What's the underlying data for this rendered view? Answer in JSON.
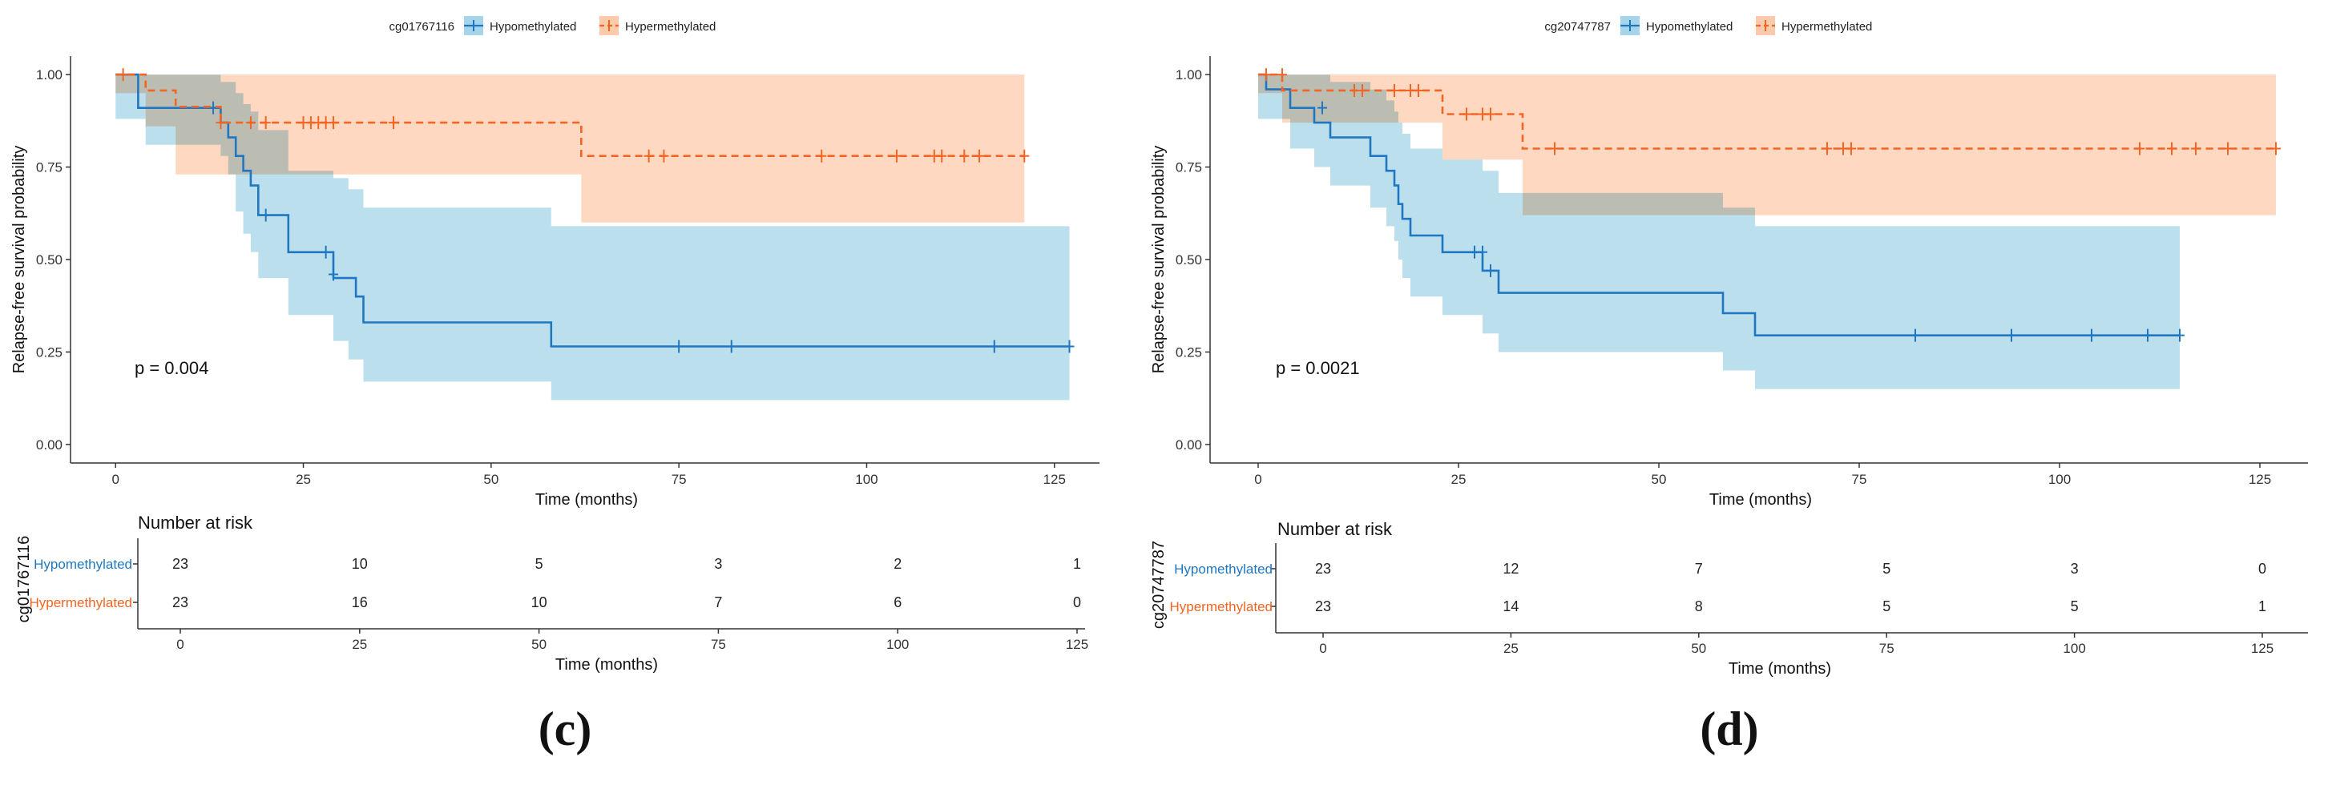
{
  "colors": {
    "hypo": "#1f77c1",
    "hypo_fill": "#a6d4e8",
    "hyper": "#f26522",
    "hyper_fill": "#fdcbab",
    "axis": "#333333"
  },
  "chart_data": [
    {
      "type": "line",
      "subtype": "kaplan-meier",
      "panel_label": "(c)",
      "legend": {
        "title": "cg01767116",
        "entries": [
          "Hypomethylated",
          "Hypermethylated"
        ],
        "position": "top"
      },
      "ylabel": "Relapse-free survival probability",
      "xlabel": "Time (months)",
      "xlim": [
        -6,
        131
      ],
      "ylim": [
        -0.05,
        1.05
      ],
      "xticks": [
        0,
        25,
        50,
        75,
        100,
        125
      ],
      "yticks": [
        "0.00",
        "0.25",
        "0.50",
        "0.75",
        "1.00"
      ],
      "pvalue": "p = 0.004",
      "series": [
        {
          "name": "Hypomethylated",
          "style": "solid",
          "steps": [
            [
              0,
              1.0
            ],
            [
              3,
              0.91
            ],
            [
              14,
              0.87
            ],
            [
              15,
              0.83
            ],
            [
              16,
              0.78
            ],
            [
              17,
              0.74
            ],
            [
              18,
              0.7
            ],
            [
              19,
              0.62
            ],
            [
              23,
              0.52
            ],
            [
              29,
              0.45
            ],
            [
              32,
              0.4
            ],
            [
              33,
              0.33
            ],
            [
              58,
              0.265
            ],
            [
              127,
              0.265
            ]
          ],
          "lower": [
            [
              0,
              0.88
            ],
            [
              4,
              0.81
            ],
            [
              14,
              0.78
            ],
            [
              15,
              0.73
            ],
            [
              16,
              0.63
            ],
            [
              17,
              0.57
            ],
            [
              18,
              0.52
            ],
            [
              19,
              0.45
            ],
            [
              23,
              0.35
            ],
            [
              29,
              0.28
            ],
            [
              31,
              0.23
            ],
            [
              33,
              0.17
            ],
            [
              58,
              0.12
            ],
            [
              127,
              0.12
            ]
          ],
          "upper": [
            [
              0,
              1.0
            ],
            [
              14,
              0.98
            ],
            [
              16,
              0.95
            ],
            [
              17,
              0.92
            ],
            [
              18,
              0.9
            ],
            [
              19,
              0.85
            ],
            [
              23,
              0.74
            ],
            [
              29,
              0.72
            ],
            [
              31,
              0.69
            ],
            [
              33,
              0.64
            ],
            [
              58,
              0.59
            ],
            [
              127,
              0.59
            ]
          ],
          "censors": [
            [
              13,
              0.91
            ],
            [
              20,
              0.62
            ],
            [
              28,
              0.52
            ],
            [
              29,
              0.46
            ],
            [
              75,
              0.265
            ],
            [
              82,
              0.265
            ],
            [
              117,
              0.265
            ],
            [
              127,
              0.265
            ]
          ],
          "end": 127
        },
        {
          "name": "Hypermethylated",
          "style": "dashed",
          "steps": [
            [
              0,
              1.0
            ],
            [
              4,
              0.957
            ],
            [
              8,
              0.913
            ],
            [
              14,
              0.87
            ],
            [
              62,
              0.78
            ],
            [
              121,
              0.78
            ]
          ],
          "lower": [
            [
              0,
              0.95
            ],
            [
              4,
              0.86
            ],
            [
              8,
              0.73
            ],
            [
              14,
              0.73
            ],
            [
              62,
              0.6
            ],
            [
              121,
              0.6
            ]
          ],
          "upper": [
            [
              0,
              1.0
            ],
            [
              121,
              1.0
            ]
          ],
          "censors": [
            [
              1,
              1.0
            ],
            [
              14,
              0.87
            ],
            [
              18,
              0.87
            ],
            [
              20,
              0.87
            ],
            [
              25,
              0.87
            ],
            [
              26,
              0.87
            ],
            [
              27,
              0.87
            ],
            [
              28,
              0.87
            ],
            [
              29,
              0.87
            ],
            [
              37,
              0.87
            ],
            [
              71,
              0.78
            ],
            [
              73,
              0.78
            ],
            [
              94,
              0.78
            ],
            [
              104,
              0.78
            ],
            [
              109,
              0.78
            ],
            [
              110,
              0.78
            ],
            [
              113,
              0.78
            ],
            [
              115,
              0.78
            ],
            [
              121,
              0.78
            ]
          ],
          "end": 121
        }
      ],
      "risk_table": {
        "title": "Number at risk",
        "group_title": "cg01767116",
        "rows": [
          {
            "name": "Hypomethylated",
            "values": [
              "23",
              "10",
              "5",
              "3",
              "2",
              "1"
            ]
          },
          {
            "name": "Hypermethylated",
            "values": [
              "23",
              "16",
              "10",
              "7",
              "6",
              "0"
            ]
          }
        ],
        "times": [
          0,
          25,
          50,
          75,
          100,
          125
        ],
        "xlabel": "Time (months)"
      }
    },
    {
      "type": "line",
      "subtype": "kaplan-meier",
      "panel_label": "(d)",
      "legend": {
        "title": "cg20747787",
        "entries": [
          "Hypomethylated",
          "Hypermethylated"
        ],
        "position": "top"
      },
      "ylabel": "Relapse-free survival probability",
      "xlabel": "Time (months)",
      "xlim": [
        -6,
        131
      ],
      "ylim": [
        -0.05,
        1.05
      ],
      "xticks": [
        0,
        25,
        50,
        75,
        100,
        125
      ],
      "yticks": [
        "0.00",
        "0.25",
        "0.50",
        "0.75",
        "1.00"
      ],
      "pvalue": "p = 0.0021",
      "series": [
        {
          "name": "Hypomethylated",
          "style": "solid",
          "steps": [
            [
              0,
              1.0
            ],
            [
              1,
              0.96
            ],
            [
              4,
              0.91
            ],
            [
              7,
              0.87
            ],
            [
              9,
              0.83
            ],
            [
              14,
              0.78
            ],
            [
              16,
              0.74
            ],
            [
              17,
              0.7
            ],
            [
              17.5,
              0.65
            ],
            [
              18,
              0.61
            ],
            [
              19,
              0.565
            ],
            [
              23,
              0.52
            ],
            [
              28,
              0.47
            ],
            [
              30,
              0.41
            ],
            [
              58,
              0.355
            ],
            [
              62,
              0.295
            ],
            [
              115,
              0.295
            ]
          ],
          "lower": [
            [
              0,
              0.88
            ],
            [
              4,
              0.8
            ],
            [
              7,
              0.75
            ],
            [
              9,
              0.7
            ],
            [
              14,
              0.64
            ],
            [
              16,
              0.59
            ],
            [
              17,
              0.55
            ],
            [
              17.5,
              0.5
            ],
            [
              18,
              0.45
            ],
            [
              19,
              0.4
            ],
            [
              23,
              0.35
            ],
            [
              28,
              0.3
            ],
            [
              30,
              0.25
            ],
            [
              58,
              0.2
            ],
            [
              62,
              0.15
            ],
            [
              115,
              0.15
            ]
          ],
          "upper": [
            [
              0,
              1.0
            ],
            [
              9,
              0.98
            ],
            [
              14,
              0.96
            ],
            [
              16,
              0.93
            ],
            [
              17,
              0.9
            ],
            [
              17.5,
              0.87
            ],
            [
              18,
              0.84
            ],
            [
              19,
              0.8
            ],
            [
              23,
              0.77
            ],
            [
              28,
              0.74
            ],
            [
              30,
              0.68
            ],
            [
              58,
              0.64
            ],
            [
              62,
              0.59
            ],
            [
              115,
              0.59
            ]
          ],
          "censors": [
            [
              8,
              0.91
            ],
            [
              27,
              0.52
            ],
            [
              28,
              0.52
            ],
            [
              29,
              0.47
            ],
            [
              82,
              0.295
            ],
            [
              94,
              0.295
            ],
            [
              104,
              0.295
            ],
            [
              111,
              0.295
            ],
            [
              115,
              0.295
            ]
          ],
          "end": 115
        },
        {
          "name": "Hypermethylated",
          "style": "dashed",
          "steps": [
            [
              0,
              1.0
            ],
            [
              3,
              0.957
            ],
            [
              23,
              0.893
            ],
            [
              33,
              0.8
            ],
            [
              127,
              0.8
            ]
          ],
          "lower": [
            [
              0,
              0.95
            ],
            [
              3,
              0.87
            ],
            [
              23,
              0.77
            ],
            [
              33,
              0.62
            ],
            [
              127,
              0.62
            ]
          ],
          "upper": [
            [
              0,
              1.0
            ],
            [
              127,
              1.0
            ]
          ],
          "censors": [
            [
              1,
              1.0
            ],
            [
              3,
              1.0
            ],
            [
              12,
              0.957
            ],
            [
              13,
              0.957
            ],
            [
              17,
              0.957
            ],
            [
              19,
              0.957
            ],
            [
              20,
              0.957
            ],
            [
              26,
              0.893
            ],
            [
              28,
              0.893
            ],
            [
              29,
              0.893
            ],
            [
              37,
              0.8
            ],
            [
              71,
              0.8
            ],
            [
              73,
              0.8
            ],
            [
              74,
              0.8
            ],
            [
              110,
              0.8
            ],
            [
              114,
              0.8
            ],
            [
              117,
              0.8
            ],
            [
              121,
              0.8
            ],
            [
              127,
              0.8
            ]
          ],
          "end": 127
        }
      ],
      "risk_table": {
        "title": "Number at risk",
        "group_title": "cg20747787",
        "rows": [
          {
            "name": "Hypomethylated",
            "values": [
              "23",
              "12",
              "7",
              "5",
              "3",
              "0"
            ]
          },
          {
            "name": "Hypermethylated",
            "values": [
              "23",
              "14",
              "8",
              "5",
              "5",
              "1"
            ]
          }
        ],
        "times": [
          0,
          25,
          50,
          75,
          100,
          125
        ],
        "xlabel": "Time (months)"
      }
    }
  ]
}
